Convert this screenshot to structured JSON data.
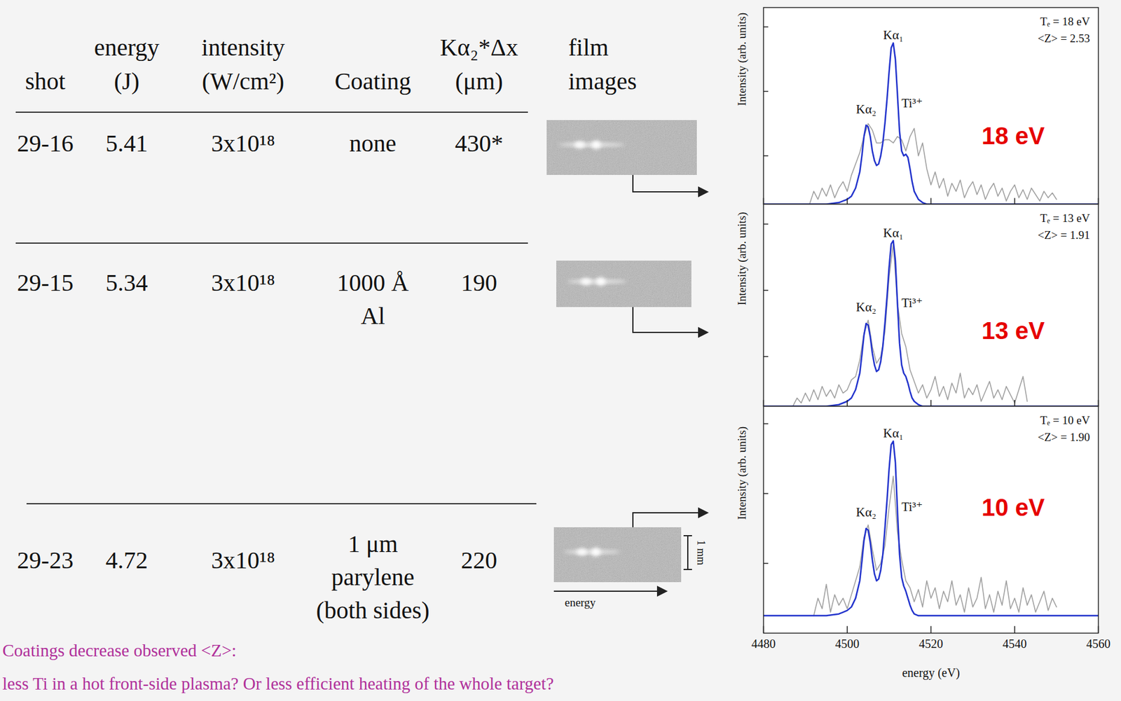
{
  "table": {
    "header": [
      [
        "shot"
      ],
      [
        "energy",
        "(J)"
      ],
      [
        "intensity",
        "(W/cm²)"
      ],
      [
        "Coating"
      ],
      [
        "Kα₂*Δx",
        "(μm)"
      ],
      [
        "film",
        "images"
      ]
    ],
    "rows": [
      [
        "29-16",
        5.41,
        "3x10¹⁸",
        [
          "none"
        ],
        "430*"
      ],
      [
        "29-15",
        5.34,
        "3x10¹⁸",
        [
          "1000 Å",
          "Al"
        ],
        190
      ],
      [
        "29-23",
        4.72,
        "3x10¹⁸",
        [
          "1 μm",
          "parylene",
          "(both sides)"
        ],
        220
      ]
    ],
    "film_scale": "1 mm",
    "film_axis": "energy"
  },
  "note": [
    "Coatings decrease observed <Z>:",
    "less Ti in a hot front-side plasma? Or less efficient heating of the whole target?"
  ],
  "chart_data": [
    {
      "type": "line",
      "xlim": [
        4480,
        4560
      ],
      "xticks": [
        4480,
        4500,
        4520,
        4540,
        4560
      ],
      "ylim": [
        0,
        1.22
      ],
      "yticks": [
        0.3,
        0.7,
        1.1
      ],
      "ylabel": "Intensity (arb. units)",
      "tick_labels": false,
      "series": [
        {
          "color": "#a0a0a0",
          "x": [
            4491,
            4492,
            4493,
            4494,
            4495,
            4496,
            4497,
            4498,
            4499,
            4500,
            4501,
            4502,
            4503,
            4504,
            4505,
            4506,
            4507,
            4508,
            4509,
            4510,
            4511,
            4512,
            4513,
            4514,
            4515,
            4516,
            4517,
            4518,
            4519,
            4520,
            4521,
            4522,
            4523,
            4524,
            4525,
            4526,
            4527,
            4528,
            4529,
            4530,
            4531,
            4532,
            4533,
            4534,
            4535,
            4536,
            4537,
            4538,
            4539,
            4540,
            4541,
            4542,
            4543,
            4544,
            4545,
            4546,
            4547,
            4548,
            4549,
            4550
          ],
          "values": [
            0.0,
            0.08,
            0.03,
            0.1,
            0.05,
            0.12,
            0.04,
            0.1,
            0.14,
            0.08,
            0.18,
            0.25,
            0.32,
            0.42,
            0.5,
            0.46,
            0.38,
            0.38,
            0.4,
            0.4,
            0.38,
            0.42,
            0.4,
            0.33,
            0.42,
            0.47,
            0.3,
            0.38,
            0.22,
            0.12,
            0.2,
            0.1,
            0.16,
            0.05,
            0.13,
            0.08,
            0.15,
            0.04,
            0.1,
            0.14,
            0.06,
            0.12,
            0.03,
            0.09,
            0.13,
            0.05,
            0.1,
            0.02,
            0.08,
            0.12,
            0.04,
            0.09,
            0.03,
            0.1,
            0.06,
            0.02,
            0.08,
            0.04,
            0.07,
            0.03
          ]
        },
        {
          "color": "#2233cc",
          "x": [
            4480,
            4495,
            4498,
            4499,
            4500,
            4501,
            4502,
            4503,
            4503.5,
            4504,
            4504.5,
            4505,
            4505.5,
            4506,
            4506.5,
            4507,
            4507.5,
            4508,
            4508.5,
            4509,
            4509.5,
            4510,
            4510.5,
            4511,
            4511.5,
            4512,
            4512.5,
            4513,
            4513.5,
            4514,
            4514.5,
            4515,
            4515.5,
            4516,
            4517,
            4518,
            4519,
            4520,
            4560
          ],
          "values": [
            0,
            0,
            0.01,
            0.02,
            0.03,
            0.05,
            0.1,
            0.2,
            0.3,
            0.42,
            0.49,
            0.48,
            0.42,
            0.33,
            0.27,
            0.24,
            0.25,
            0.3,
            0.38,
            0.5,
            0.65,
            0.82,
            0.97,
            1.0,
            0.9,
            0.68,
            0.45,
            0.33,
            0.3,
            0.31,
            0.29,
            0.22,
            0.14,
            0.08,
            0.03,
            0.01,
            0,
            0,
            0
          ]
        }
      ],
      "peak_labels": [
        "Kα₁",
        "Kα₂",
        "Ti³⁺"
      ],
      "annotations": [
        "Tₑ = 18 eV",
        "<Z> = 2.53"
      ],
      "highlight": {
        "text": "18 eV",
        "color": "#e60000"
      }
    },
    {
      "type": "line",
      "xlim": [
        4480,
        4560
      ],
      "xticks": [
        4480,
        4500,
        4520,
        4540,
        4560
      ],
      "ylim": [
        0,
        1.22
      ],
      "yticks": [
        0.3,
        0.7,
        1.1
      ],
      "ylabel": "Intensity (arb. units)",
      "tick_labels": false,
      "series": [
        {
          "color": "#a0a0a0",
          "x": [
            4487,
            4488,
            4489,
            4490,
            4491,
            4492,
            4493,
            4494,
            4495,
            4496,
            4497,
            4498,
            4499,
            4500,
            4501,
            4502,
            4503,
            4504,
            4505,
            4506,
            4507,
            4508,
            4509,
            4510,
            4511,
            4512,
            4513,
            4514,
            4515,
            4516,
            4517,
            4518,
            4519,
            4520,
            4521,
            4522,
            4523,
            4524,
            4525,
            4526,
            4527,
            4528,
            4529,
            4530,
            4531,
            4532,
            4533,
            4534,
            4535,
            4536,
            4537,
            4538,
            4539,
            4540,
            4541,
            4542,
            4543
          ],
          "values": [
            0.0,
            0.05,
            0.02,
            0.08,
            0.03,
            0.1,
            0.04,
            0.12,
            0.06,
            0.1,
            0.05,
            0.13,
            0.08,
            0.1,
            0.16,
            0.18,
            0.28,
            0.44,
            0.52,
            0.36,
            0.26,
            0.3,
            0.45,
            0.78,
            0.98,
            0.62,
            0.44,
            0.36,
            0.22,
            0.15,
            0.08,
            0.13,
            0.05,
            0.1,
            0.18,
            0.06,
            0.12,
            0.04,
            0.14,
            0.08,
            0.2,
            0.05,
            0.11,
            0.07,
            0.13,
            0.03,
            0.09,
            0.15,
            0.05,
            0.1,
            0.04,
            0.12,
            0.07,
            0.02,
            0.1,
            0.18,
            0.03
          ]
        },
        {
          "color": "#2233cc",
          "x": [
            4480,
            4495,
            4498,
            4499,
            4500,
            4501,
            4502,
            4503,
            4503.5,
            4504,
            4504.5,
            4505,
            4505.5,
            4506,
            4506.5,
            4507,
            4507.5,
            4508,
            4508.5,
            4509,
            4509.5,
            4510,
            4510.5,
            4511,
            4511.5,
            4512,
            4512.5,
            4513,
            4513.5,
            4514,
            4514.5,
            4515,
            4515.5,
            4516,
            4517,
            4518,
            4519,
            4520,
            4560
          ],
          "values": [
            0,
            0,
            0.01,
            0.02,
            0.03,
            0.05,
            0.1,
            0.2,
            0.31,
            0.43,
            0.5,
            0.49,
            0.42,
            0.32,
            0.25,
            0.21,
            0.22,
            0.27,
            0.36,
            0.5,
            0.66,
            0.84,
            0.98,
            1.0,
            0.88,
            0.62,
            0.38,
            0.25,
            0.2,
            0.18,
            0.14,
            0.09,
            0.05,
            0.03,
            0.01,
            0,
            0,
            0,
            0
          ]
        }
      ],
      "peak_labels": [
        "Kα₁",
        "Kα₂",
        "Ti³⁺"
      ],
      "annotations": [
        "Tₑ = 13 eV",
        "<Z> = 1.91"
      ],
      "highlight": {
        "text": "13 eV",
        "color": "#e60000"
      }
    },
    {
      "type": "line",
      "xlim": [
        4480,
        4560
      ],
      "xticks": [
        4480,
        4500,
        4520,
        4540,
        4560
      ],
      "ylim": [
        0,
        1.3
      ],
      "yticks": [
        0.4,
        0.8,
        1.2
      ],
      "ylabel": "Intensity (arb. units)",
      "xlabel": "energy (eV)",
      "tick_labels": "x",
      "series": [
        {
          "color": "#a0a0a0",
          "x": [
            4492,
            4493,
            4494,
            4495,
            4496,
            4497,
            4498,
            4499,
            4500,
            4501,
            4502,
            4503,
            4504,
            4505,
            4506,
            4507,
            4508,
            4509,
            4510,
            4511,
            4512,
            4513,
            4514,
            4515,
            4516,
            4517,
            4518,
            4519,
            4520,
            4521,
            4522,
            4523,
            4524,
            4525,
            4526,
            4527,
            4528,
            4529,
            4530,
            4531,
            4532,
            4533,
            4534,
            4535,
            4536,
            4537,
            4538,
            4539,
            4540,
            4541,
            4542,
            4543,
            4544,
            4545,
            4546,
            4547,
            4548,
            4549,
            4550
          ],
          "values": [
            0.1,
            0.2,
            0.14,
            0.28,
            0.12,
            0.22,
            0.16,
            0.2,
            0.14,
            0.22,
            0.3,
            0.38,
            0.55,
            0.62,
            0.48,
            0.36,
            0.4,
            0.5,
            0.72,
            0.9,
            0.58,
            0.42,
            0.3,
            0.26,
            0.18,
            0.25,
            0.15,
            0.3,
            0.2,
            0.26,
            0.14,
            0.24,
            0.18,
            0.3,
            0.16,
            0.22,
            0.12,
            0.26,
            0.15,
            0.2,
            0.32,
            0.14,
            0.22,
            0.12,
            0.24,
            0.16,
            0.3,
            0.14,
            0.2,
            0.12,
            0.26,
            0.16,
            0.22,
            0.12,
            0.18,
            0.24,
            0.13,
            0.2,
            0.15
          ]
        },
        {
          "color": "#2233cc",
          "x": [
            4480,
            4495,
            4498,
            4499,
            4500,
            4501,
            4502,
            4503,
            4503.5,
            4504,
            4504.5,
            4505,
            4505.5,
            4506,
            4506.5,
            4507,
            4507.5,
            4508,
            4508.5,
            4509,
            4509.5,
            4510,
            4510.5,
            4511,
            4511.5,
            4512,
            4512.5,
            4513,
            4513.5,
            4514,
            4514.5,
            4515,
            4515.5,
            4516,
            4517,
            4518,
            4519,
            4520,
            4560
          ],
          "values": [
            0.1,
            0.1,
            0.11,
            0.12,
            0.13,
            0.15,
            0.2,
            0.3,
            0.41,
            0.53,
            0.6,
            0.59,
            0.52,
            0.42,
            0.34,
            0.3,
            0.31,
            0.36,
            0.45,
            0.6,
            0.76,
            0.94,
            1.08,
            1.1,
            0.98,
            0.7,
            0.45,
            0.32,
            0.27,
            0.24,
            0.2,
            0.16,
            0.13,
            0.11,
            0.1,
            0.1,
            0.1,
            0.1,
            0.1
          ]
        }
      ],
      "peak_labels": [
        "Kα₁",
        "Kα₂",
        "Ti³⁺"
      ],
      "annotations": [
        "Tₑ = 10 eV",
        "<Z> = 1.90"
      ],
      "highlight": {
        "text": "10 eV",
        "color": "#e60000"
      }
    }
  ]
}
